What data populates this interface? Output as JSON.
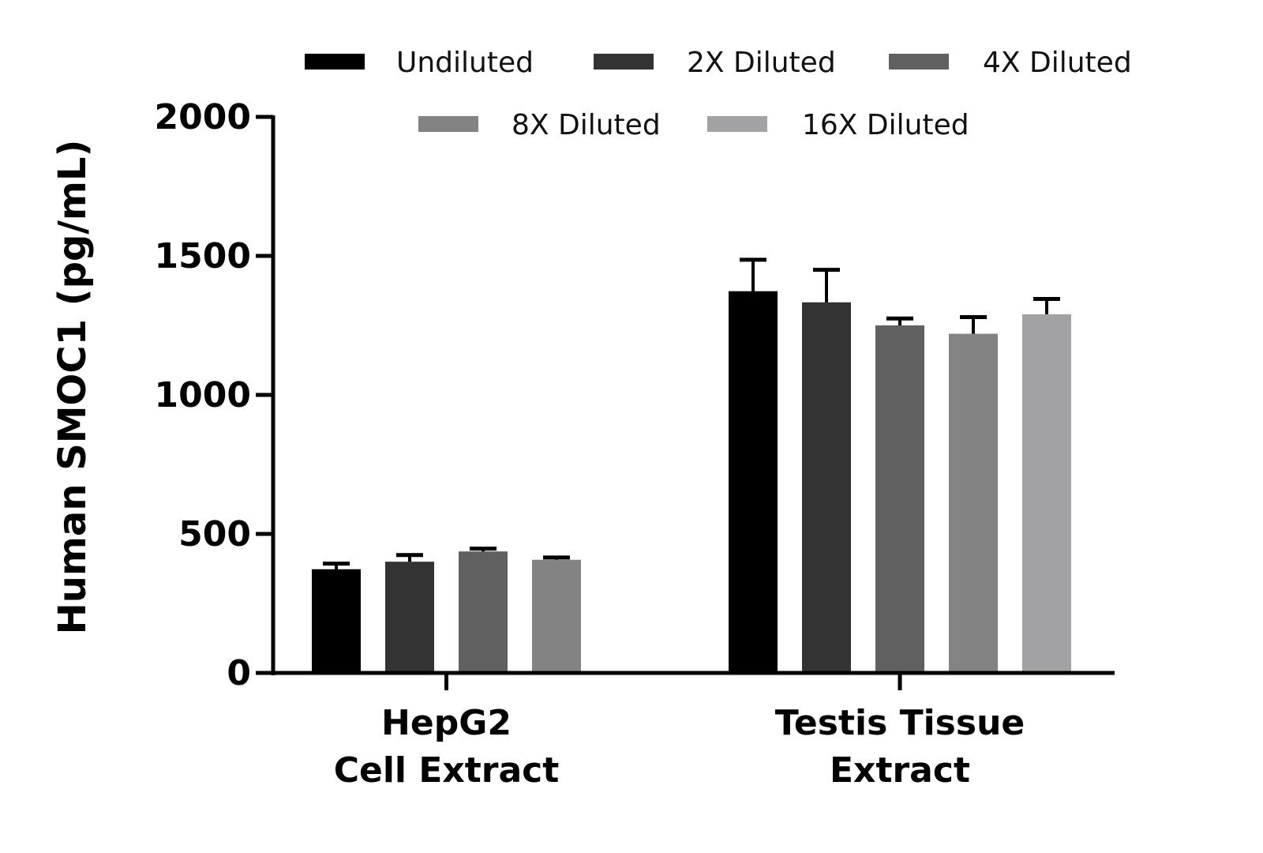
{
  "chart_data": {
    "type": "bar",
    "title": "",
    "xlabel": "",
    "ylabel": "Human SMOC1 (pg/mL)",
    "ylim": [
      0,
      2000
    ],
    "yticks": [
      0,
      500,
      1000,
      1500,
      2000
    ],
    "grid": false,
    "legend_position": "top",
    "categories": [
      {
        "lines": [
          "HepG2",
          "Cell Extract"
        ]
      },
      {
        "lines": [
          "Testis Tissue",
          "Extract"
        ]
      }
    ],
    "series": [
      {
        "name": "Undiluted",
        "color": "#000000",
        "values": [
          373,
          1373
        ],
        "errors": [
          20,
          113
        ]
      },
      {
        "name": "2X Diluted",
        "color": "#333333",
        "values": [
          400,
          1333
        ],
        "errors": [
          24,
          117
        ]
      },
      {
        "name": "4X Diluted",
        "color": "#606060",
        "values": [
          437,
          1250
        ],
        "errors": [
          10,
          25
        ]
      },
      {
        "name": "8X Diluted",
        "color": "#838383",
        "values": [
          407,
          1220
        ],
        "errors": [
          8,
          60
        ]
      },
      {
        "name": "16X Diluted",
        "color": "#a2a2a5",
        "values": [
          null,
          1290
        ],
        "errors": [
          null,
          55
        ]
      }
    ]
  }
}
